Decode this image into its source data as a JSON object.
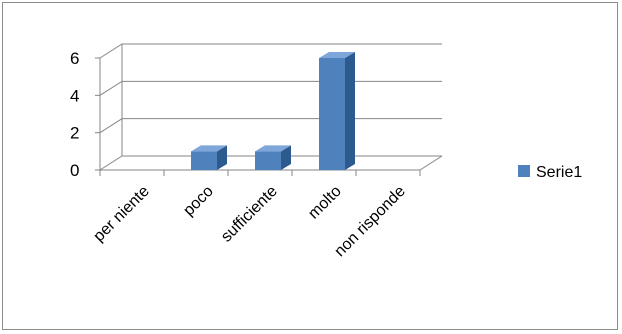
{
  "chart_data": {
    "type": "bar",
    "style": "3d-column",
    "categories": [
      "per niente",
      "poco",
      "sufficiente",
      "molto",
      "non risponde"
    ],
    "series": [
      {
        "name": "Serie1",
        "values": [
          0,
          1,
          1,
          6,
          0
        ]
      }
    ],
    "ylim": [
      0,
      6
    ],
    "yticks": [
      0,
      2,
      4,
      6
    ],
    "grid": true,
    "legend": "right",
    "colors": {
      "front": "#4f81bd",
      "side": "#2c5a8f",
      "top": "#7ea6d9",
      "grid": "#868686",
      "legend": "#4f81bd"
    }
  }
}
